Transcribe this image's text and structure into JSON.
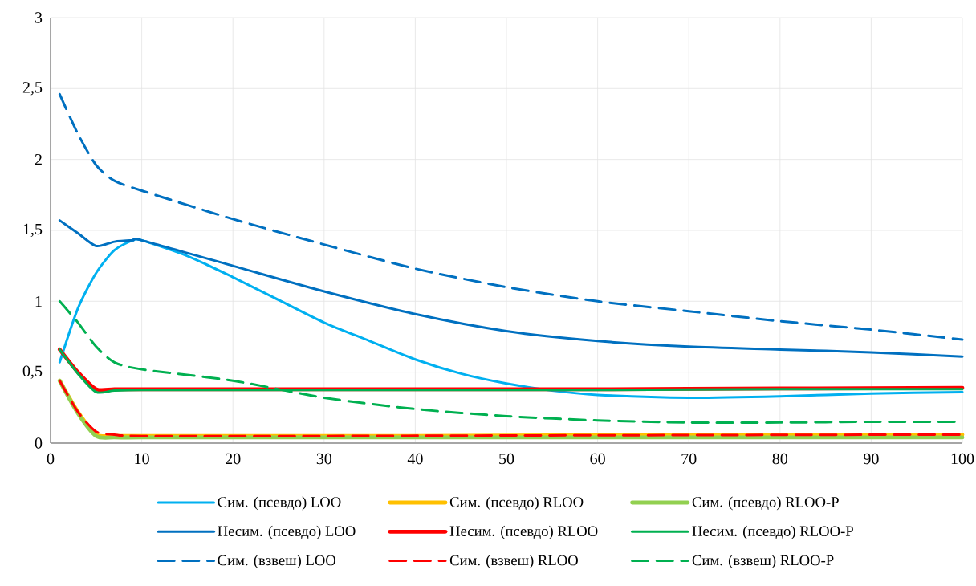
{
  "chart_data": {
    "type": "line",
    "xlim": [
      0,
      100
    ],
    "ylim": [
      0,
      3
    ],
    "xticks": [
      0,
      10,
      20,
      30,
      40,
      50,
      60,
      70,
      80,
      90,
      100
    ],
    "yticks": [
      0,
      {
        "value": 0.5,
        "label": "0,5"
      },
      1,
      {
        "value": 1.5,
        "label": "1,5"
      },
      2,
      {
        "value": 2.5,
        "label": "2,5"
      },
      3
    ],
    "grid": true,
    "legend": "bottom",
    "line_style": "solid",
    "series": [
      {
        "name": "Сим. (псевдо) LOO",
        "color": "#00b0f0",
        "x": [
          1,
          3,
          5,
          7,
          9,
          10,
          15,
          20,
          25,
          30,
          35,
          40,
          45,
          50,
          55,
          60,
          70,
          80,
          90,
          100
        ],
        "values": [
          0.57,
          0.95,
          1.2,
          1.36,
          1.43,
          1.43,
          1.32,
          1.17,
          1.01,
          0.85,
          0.72,
          0.59,
          0.49,
          0.42,
          0.37,
          0.34,
          0.32,
          0.33,
          0.35,
          0.36
        ]
      },
      {
        "name": "Сим. (псевдо) RLOO",
        "color": "#ffc000",
        "x": [
          1,
          3,
          5,
          7,
          10,
          20,
          40,
          60,
          80,
          100
        ],
        "values": [
          0.44,
          0.22,
          0.06,
          0.05,
          0.05,
          0.05,
          0.05,
          0.055,
          0.06,
          0.06
        ]
      },
      {
        "name": "Сим. (псевдо) RLOO-P",
        "color": "#92d050",
        "x": [
          1,
          3,
          5,
          7,
          10,
          20,
          40,
          60,
          80,
          100
        ],
        "values": [
          0.44,
          0.21,
          0.05,
          0.04,
          0.04,
          0.04,
          0.04,
          0.04,
          0.04,
          0.04
        ]
      },
      {
        "name": "Несим. (псевдо) LOO",
        "color": "#0070c0",
        "x": [
          1,
          3,
          5,
          7,
          9,
          10,
          20,
          30,
          40,
          50,
          60,
          70,
          80,
          90,
          100
        ],
        "values": [
          1.57,
          1.48,
          1.39,
          1.42,
          1.43,
          1.43,
          1.25,
          1.07,
          0.91,
          0.79,
          0.72,
          0.68,
          0.66,
          0.64,
          0.61
        ]
      },
      {
        "name": "Несим. (псевдо) RLOO",
        "color": "#ff0000",
        "x": [
          1,
          3,
          5,
          7,
          10,
          20,
          40,
          60,
          80,
          100
        ],
        "values": [
          0.66,
          0.5,
          0.38,
          0.38,
          0.38,
          0.38,
          0.38,
          0.38,
          0.385,
          0.39
        ]
      },
      {
        "name": "Несим. (псевдо) RLOO-P",
        "color": "#00b050",
        "x": [
          1,
          3,
          5,
          7,
          10,
          20,
          40,
          60,
          80,
          100
        ],
        "values": [
          0.66,
          0.49,
          0.36,
          0.37,
          0.375,
          0.375,
          0.375,
          0.375,
          0.38,
          0.38
        ]
      },
      {
        "name": "Сим. (взвеш) LOO",
        "color": "#0070c0",
        "line_style": "dashed",
        "x": [
          1,
          3,
          5,
          7,
          10,
          20,
          30,
          40,
          50,
          60,
          70,
          80,
          90,
          100
        ],
        "values": [
          2.46,
          2.18,
          1.96,
          1.85,
          1.78,
          1.58,
          1.4,
          1.23,
          1.1,
          1.0,
          0.93,
          0.86,
          0.8,
          0.73
        ]
      },
      {
        "name": "Сим. (взвеш) RLOO",
        "color": "#ff0000",
        "line_style": "dashed",
        "x": [
          1,
          3,
          5,
          7,
          10,
          30,
          60,
          100
        ],
        "values": [
          0.44,
          0.22,
          0.08,
          0.06,
          0.05,
          0.05,
          0.055,
          0.06
        ]
      },
      {
        "name": "Сим. (взвеш) RLOO-P",
        "color": "#00b050",
        "line_style": "dashed",
        "x": [
          1,
          3,
          5,
          7,
          10,
          20,
          30,
          40,
          50,
          60,
          70,
          80,
          90,
          100
        ],
        "values": [
          1.0,
          0.85,
          0.68,
          0.57,
          0.52,
          0.44,
          0.32,
          0.24,
          0.19,
          0.16,
          0.145,
          0.145,
          0.15,
          0.15
        ]
      }
    ]
  }
}
